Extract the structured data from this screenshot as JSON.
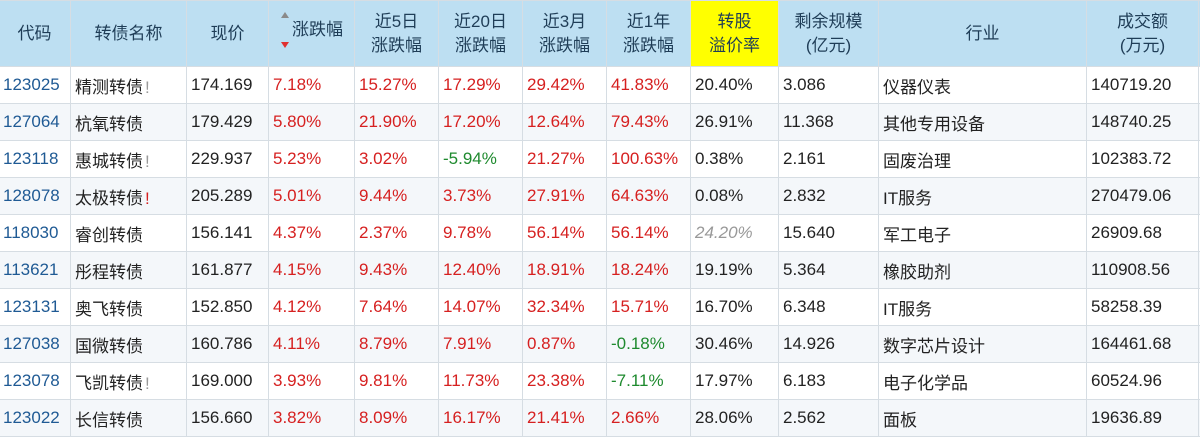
{
  "headers": {
    "code": "代码",
    "name": "转债名称",
    "price": "现价",
    "change": "涨跌幅",
    "chg5d_1": "近5日",
    "chg5d_2": "涨跌幅",
    "chg20d_1": "近20日",
    "chg20d_2": "涨跌幅",
    "chg3m_1": "近3月",
    "chg3m_2": "涨跌幅",
    "chg1y_1": "近1年",
    "chg1y_2": "涨跌幅",
    "premium_1": "转股",
    "premium_2": "溢价率",
    "remaining_1": "剩余规模",
    "remaining_2": "(亿元)",
    "industry": "行业",
    "volume_1": "成交额",
    "volume_2": "(万元)"
  },
  "sort": {
    "column": "change",
    "direction": "desc"
  },
  "colors": {
    "header_bg": "#bddff2",
    "highlight_header": "#ffff00",
    "positive": "#d62020",
    "negative": "#1e8a2e",
    "code": "#1f5a94"
  },
  "rows": [
    {
      "code": "123025",
      "name": "精测转债",
      "flag": "!",
      "flag_red": false,
      "price": "174.169",
      "change": "7.18%",
      "chg5d": "15.27%",
      "chg20d": "17.29%",
      "chg3m": "29.42%",
      "chg1y": "41.83%",
      "premium": "20.40%",
      "remaining": "3.086",
      "industry": "仪器仪表",
      "volume": "140719.20"
    },
    {
      "code": "127064",
      "name": "杭氧转债",
      "flag": "",
      "flag_red": false,
      "price": "179.429",
      "change": "5.80%",
      "chg5d": "21.90%",
      "chg20d": "17.20%",
      "chg3m": "12.64%",
      "chg1y": "79.43%",
      "premium": "26.91%",
      "remaining": "11.368",
      "industry": "其他专用设备",
      "volume": "148740.25"
    },
    {
      "code": "123118",
      "name": "惠城转债",
      "flag": "!",
      "flag_red": false,
      "price": "229.937",
      "change": "5.23%",
      "chg5d": "3.02%",
      "chg20d": "-5.94%",
      "chg3m": "21.27%",
      "chg1y": "100.63%",
      "premium": "0.38%",
      "remaining": "2.161",
      "industry": "固废治理",
      "volume": "102383.72"
    },
    {
      "code": "128078",
      "name": "太极转债",
      "flag": "!",
      "flag_red": true,
      "price": "205.289",
      "change": "5.01%",
      "chg5d": "9.44%",
      "chg20d": "3.73%",
      "chg3m": "27.91%",
      "chg1y": "64.63%",
      "premium": "0.08%",
      "remaining": "2.832",
      "industry": "IT服务",
      "volume": "270479.06"
    },
    {
      "code": "118030",
      "name": "睿创转债",
      "flag": "",
      "flag_red": false,
      "price": "156.141",
      "change": "4.37%",
      "chg5d": "2.37%",
      "chg20d": "9.78%",
      "chg3m": "56.14%",
      "chg1y": "56.14%",
      "premium": "24.20%",
      "premium_muted": true,
      "remaining": "15.640",
      "industry": "军工电子",
      "volume": "26909.68"
    },
    {
      "code": "113621",
      "name": "彤程转债",
      "flag": "",
      "flag_red": false,
      "price": "161.877",
      "change": "4.15%",
      "chg5d": "9.43%",
      "chg20d": "12.40%",
      "chg3m": "18.91%",
      "chg1y": "18.24%",
      "premium": "19.19%",
      "remaining": "5.364",
      "industry": "橡胶助剂",
      "volume": "110908.56"
    },
    {
      "code": "123131",
      "name": "奥飞转债",
      "flag": "",
      "flag_red": false,
      "price": "152.850",
      "change": "4.12%",
      "chg5d": "7.64%",
      "chg20d": "14.07%",
      "chg3m": "32.34%",
      "chg1y": "15.71%",
      "premium": "16.70%",
      "remaining": "6.348",
      "industry": "IT服务",
      "volume": "58258.39"
    },
    {
      "code": "127038",
      "name": "国微转债",
      "flag": "",
      "flag_red": false,
      "price": "160.786",
      "change": "4.11%",
      "chg5d": "8.79%",
      "chg20d": "7.91%",
      "chg3m": "0.87%",
      "chg1y": "-0.18%",
      "premium": "30.46%",
      "remaining": "14.926",
      "industry": "数字芯片设计",
      "volume": "164461.68"
    },
    {
      "code": "123078",
      "name": "飞凯转债",
      "flag": "!",
      "flag_red": false,
      "price": "169.000",
      "change": "3.93%",
      "chg5d": "9.81%",
      "chg20d": "11.73%",
      "chg3m": "23.38%",
      "chg1y": "-7.11%",
      "premium": "17.97%",
      "remaining": "6.183",
      "industry": "电子化学品",
      "volume": "60524.96"
    },
    {
      "code": "123022",
      "name": "长信转债",
      "flag": "",
      "flag_red": false,
      "price": "156.660",
      "change": "3.82%",
      "chg5d": "8.09%",
      "chg20d": "16.17%",
      "chg3m": "21.41%",
      "chg1y": "2.66%",
      "premium": "28.06%",
      "remaining": "2.562",
      "industry": "面板",
      "volume": "19636.89"
    }
  ]
}
